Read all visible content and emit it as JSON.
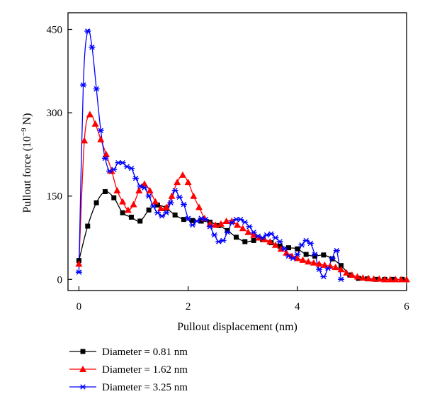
{
  "chart_data": {
    "type": "line",
    "title": "",
    "xlabel": "Pullout displacement (nm)",
    "ylabel_main": "Pullout force (10",
    "ylabel_exp": "−9",
    "ylabel_unit": " N)",
    "xlim": [
      -0.2,
      6
    ],
    "ylim": [
      -20,
      480
    ],
    "xticks": [
      0,
      2,
      4,
      6
    ],
    "yticks": [
      0,
      150,
      300,
      450
    ],
    "xtick_labels": [
      "0",
      "2",
      "4",
      "6"
    ],
    "ytick_labels": [
      "0",
      "150",
      "300",
      "450"
    ],
    "grid": false,
    "legend_position": "bottom",
    "series": [
      {
        "name": "Diameter = 0.81 nm",
        "color": "#000000",
        "marker": "square",
        "x": [
          0.0,
          0.16,
          0.32,
          0.48,
          0.64,
          0.8,
          0.96,
          1.12,
          1.28,
          1.44,
          1.6,
          1.76,
          1.92,
          2.08,
          2.24,
          2.4,
          2.56,
          2.72,
          2.88,
          3.04,
          3.2,
          3.36,
          3.52,
          3.68,
          3.84,
          4.0,
          4.16,
          4.32,
          4.48,
          4.64,
          4.8,
          4.96,
          5.12,
          5.28,
          5.44,
          5.6,
          5.76,
          5.92
        ],
        "y": [
          34,
          96,
          138,
          158,
          147,
          120,
          112,
          105,
          125,
          134,
          128,
          116,
          108,
          106,
          105,
          103,
          97,
          88,
          76,
          68,
          70,
          72,
          66,
          60,
          57,
          55,
          45,
          42,
          44,
          37,
          25,
          8,
          2,
          1,
          0,
          0,
          0,
          0
        ]
      },
      {
        "name": "Diameter = 1.62 nm",
        "color": "#ff0000",
        "marker": "triangle",
        "x": [
          0.0,
          0.1,
          0.2,
          0.3,
          0.4,
          0.5,
          0.6,
          0.7,
          0.8,
          0.9,
          1.0,
          1.1,
          1.2,
          1.3,
          1.4,
          1.5,
          1.6,
          1.7,
          1.8,
          1.9,
          2.0,
          2.1,
          2.2,
          2.3,
          2.4,
          2.5,
          2.6,
          2.7,
          2.8,
          2.9,
          3.0,
          3.1,
          3.2,
          3.3,
          3.4,
          3.5,
          3.6,
          3.7,
          3.8,
          3.9,
          4.0,
          4.1,
          4.2,
          4.3,
          4.4,
          4.5,
          4.6,
          4.7,
          4.8,
          4.9,
          5.0,
          5.1,
          5.2,
          5.3,
          5.4,
          5.5,
          5.6,
          5.7,
          5.8,
          5.9,
          6.0
        ],
        "y": [
          28,
          250,
          297,
          280,
          252,
          225,
          195,
          160,
          140,
          125,
          135,
          160,
          172,
          160,
          140,
          128,
          130,
          150,
          175,
          188,
          175,
          150,
          130,
          110,
          100,
          98,
          100,
          105,
          105,
          98,
          92,
          85,
          80,
          75,
          72,
          68,
          62,
          55,
          48,
          42,
          38,
          35,
          32,
          30,
          28,
          26,
          24,
          22,
          18,
          12,
          8,
          5,
          3,
          2,
          1,
          1,
          0,
          0,
          0,
          0,
          0
        ]
      },
      {
        "name": "Diameter = 3.25 nm",
        "color": "#0000ff",
        "marker": "star",
        "x": [
          0.0,
          0.08,
          0.16,
          0.24,
          0.32,
          0.4,
          0.48,
          0.56,
          0.64,
          0.72,
          0.8,
          0.88,
          0.96,
          1.04,
          1.12,
          1.2,
          1.28,
          1.36,
          1.44,
          1.52,
          1.6,
          1.68,
          1.76,
          1.84,
          1.92,
          2.0,
          2.08,
          2.16,
          2.24,
          2.32,
          2.4,
          2.48,
          2.56,
          2.64,
          2.72,
          2.8,
          2.88,
          2.96,
          3.04,
          3.12,
          3.2,
          3.28,
          3.36,
          3.44,
          3.52,
          3.6,
          3.68,
          3.76,
          3.84,
          3.92,
          4.0,
          4.08,
          4.16,
          4.24,
          4.32,
          4.4,
          4.48,
          4.56,
          4.64,
          4.72,
          4.8
        ],
        "y": [
          13,
          350,
          447,
          418,
          343,
          268,
          218,
          195,
          198,
          210,
          210,
          203,
          200,
          182,
          168,
          165,
          150,
          132,
          120,
          114,
          120,
          138,
          160,
          148,
          135,
          110,
          98,
          105,
          110,
          108,
          95,
          80,
          68,
          70,
          85,
          102,
          108,
          108,
          103,
          95,
          85,
          78,
          75,
          80,
          82,
          75,
          68,
          55,
          42,
          38,
          45,
          62,
          70,
          65,
          45,
          18,
          5,
          20,
          38,
          52,
          0
        ]
      }
    ]
  }
}
